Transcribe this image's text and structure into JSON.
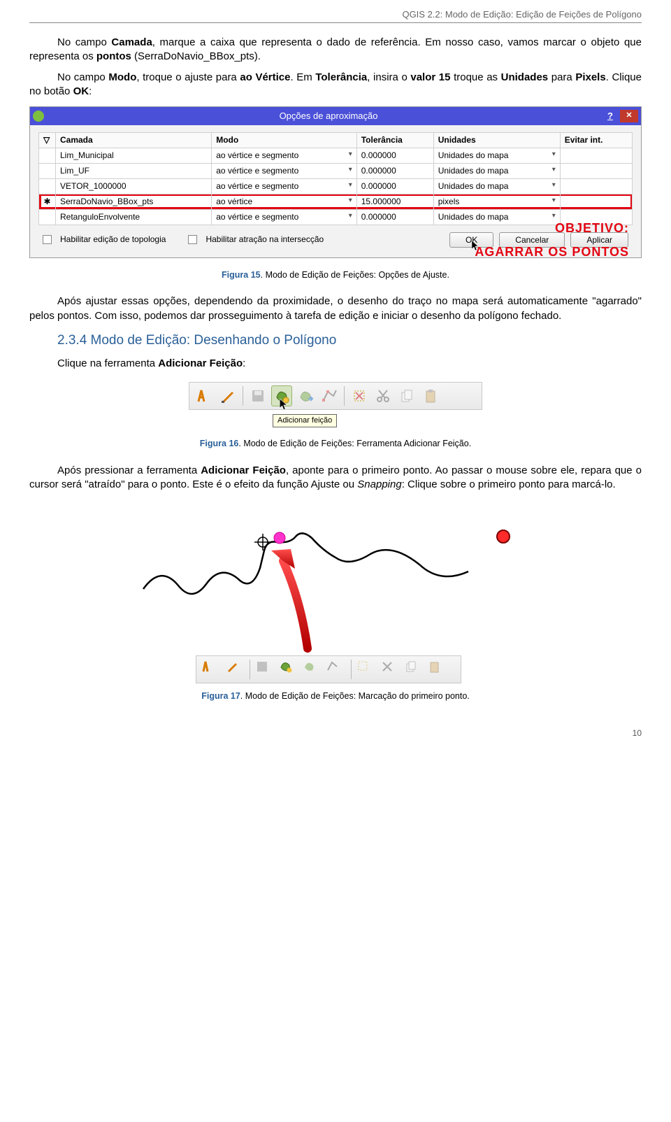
{
  "page_header": "QGIS 2.2: Modo de Edição: Edição de Feições de Polígono",
  "para1_a": "No campo ",
  "para1_b": "Camada",
  "para1_c": ", marque a caixa que representa o dado de referência. Em nosso caso, vamos marcar o objeto que representa os ",
  "para1_d": "pontos",
  "para1_e": " (SerraDoNavio_BBox_pts).",
  "para2_a": "No campo ",
  "para2_b": "Modo",
  "para2_c": ", troque o ajuste para ",
  "para2_d": "ao Vértice",
  "para2_e": ". Em ",
  "para2_f": "Tolerância",
  "para2_g": ", insira o ",
  "para2_h": "valor 15",
  "para2_i": " troque as ",
  "para2_j": "Unidades",
  "para2_k": " para ",
  "para2_l": "Pixels",
  "para2_m": ". Clique no botão ",
  "para2_n": "OK",
  "para2_o": ":",
  "dialog": {
    "title": "Opções de aproximação",
    "columns": [
      "",
      "Camada",
      "Modo",
      "Tolerância",
      "Unidades",
      "Evitar int."
    ],
    "rows": [
      {
        "chk": "",
        "layer": "Lim_Municipal",
        "modo": "ao vértice e segmento",
        "tol": "0.000000",
        "uni": "Unidades do mapa"
      },
      {
        "chk": "",
        "layer": "Lim_UF",
        "modo": "ao vértice e segmento",
        "tol": "0.000000",
        "uni": "Unidades do mapa"
      },
      {
        "chk": "",
        "layer": "VETOR_1000000",
        "modo": "ao vértice e segmento",
        "tol": "0.000000",
        "uni": "Unidades do mapa"
      },
      {
        "chk": "✱",
        "layer": "SerraDoNavio_BBox_pts",
        "modo": "ao vértice",
        "tol": "15.000000",
        "uni": "pixels",
        "hl": true
      },
      {
        "chk": "",
        "layer": "RetanguloEnvolvente",
        "modo": "ao vértice e segmento",
        "tol": "0.000000",
        "uni": "Unidades do mapa"
      }
    ],
    "footer_chk1": "Habilitar edição de topologia",
    "footer_chk2": "Habilitar atração na intersecção",
    "btn_ok": "OK",
    "btn_cancel": "Cancelar",
    "btn_apply": "Aplicar",
    "annotation1": "OBJETIVO:",
    "annotation2": "AGARRAR OS PONTOS"
  },
  "fig15_label": "Figura 15",
  "fig15_text": ". Modo de Edição de Feições: Opções de Ajuste.",
  "para3": "Após ajustar essas opções, dependendo da proximidade, o desenho do traço no mapa será automaticamente \"agarrado\" pelos pontos. Com isso, podemos dar prosseguimento à tarefa de edição e iniciar o desenho da polígono fechado.",
  "section_title": "2.3.4 Modo de Edição: Desenhando o Polígono",
  "para4_a": "Clique na ferramenta ",
  "para4_b": "Adicionar Feição",
  "para4_c": ":",
  "tooltip_text": "Adicionar feição",
  "fig16_label": "Figura 16",
  "fig16_text": ". Modo de Edição de Feições: Ferramenta Adicionar Feição.",
  "para5_a": "Após pressionar a ferramenta ",
  "para5_b": "Adicionar Feição",
  "para5_c": ", aponte para o primeiro ponto. Ao passar o mouse sobre ele, repara que o cursor será \"atraído\" para o ponto. Este é o efeito da função Ajuste ou ",
  "para5_d": "Snapping",
  "para5_e": ":  Clique sobre o primeiro ponto para marcá-lo.",
  "fig17_label": "Figura 17",
  "fig17_text": ". Modo de Edição de Feições: Marcação do primeiro ponto.",
  "page_number": "10",
  "colors": {
    "titlebar": "#4b50d8",
    "highlight": "#e30613",
    "link": "#2a6099"
  }
}
